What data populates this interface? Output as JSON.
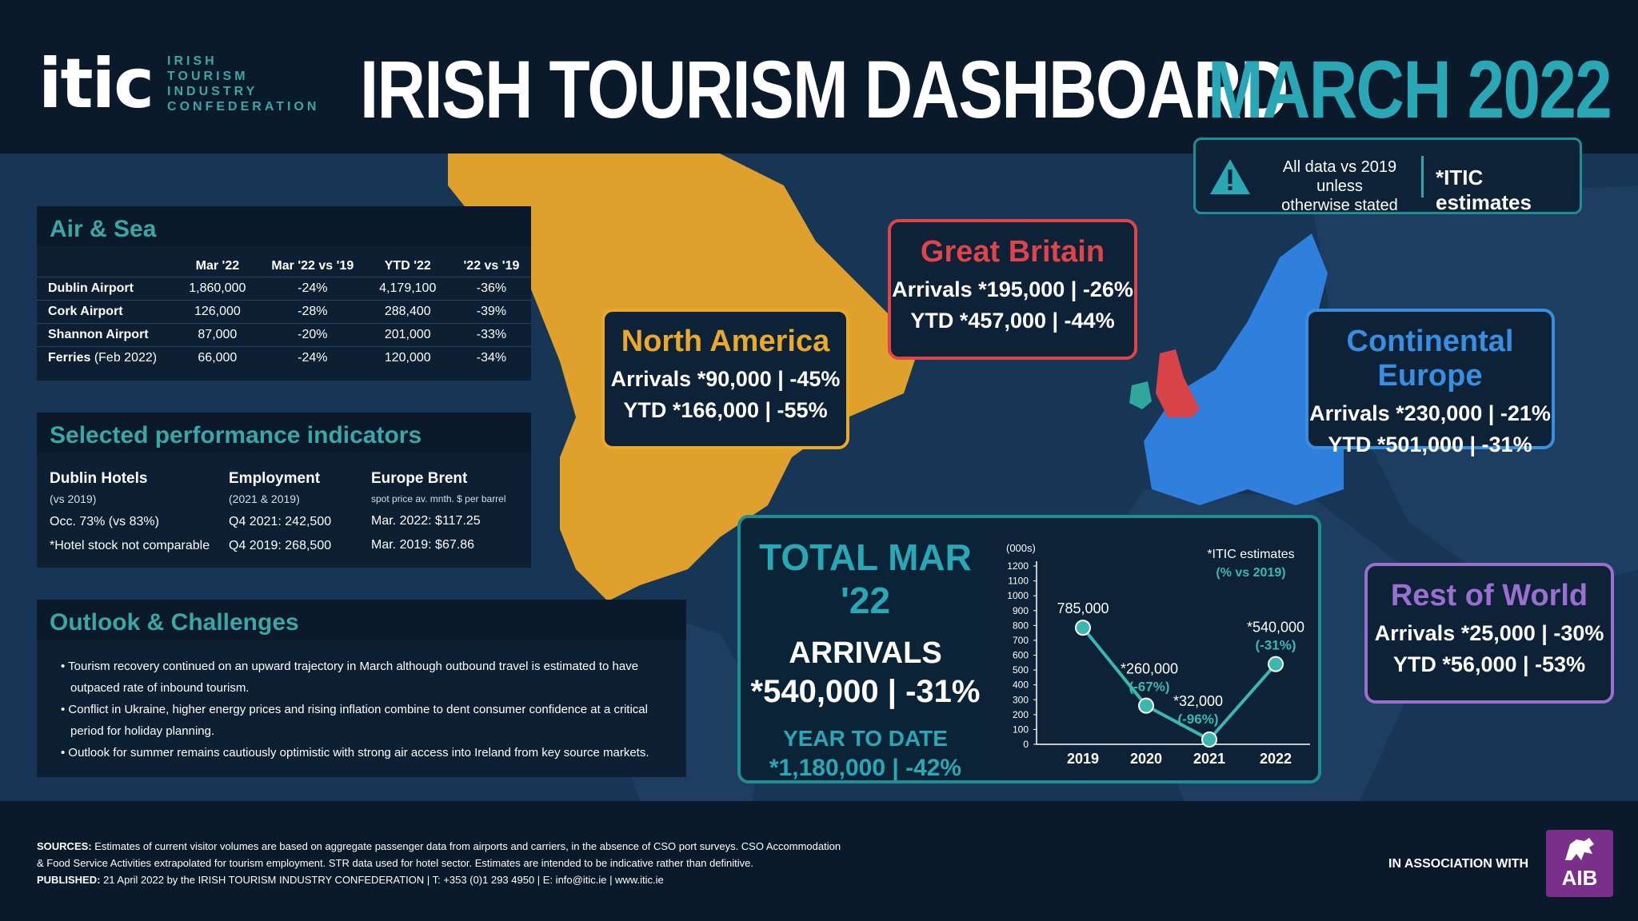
{
  "header": {
    "logo_mark": "itic",
    "logo_lines": [
      "IRISH",
      "TOURISM",
      "INDUSTRY",
      "CONFEDERATION"
    ],
    "title": "IRISH TOURISM DASHBOARD",
    "month": "MARCH 2022"
  },
  "notice": {
    "line1": "All data vs 2019 unless",
    "line2": "otherwise stated",
    "estimates": "*ITIC estimates",
    "icon": "warning-icon"
  },
  "air_sea": {
    "title": "Air & Sea",
    "columns": [
      "",
      "Mar '22",
      "Mar '22 vs '19",
      "YTD '22",
      "'22 vs '19"
    ],
    "rows": [
      {
        "name": "Dublin Airport",
        "note": "",
        "mar": "1,860,000",
        "mar_vs": "-24%",
        "ytd": "4,179,100",
        "ytd_vs": "-36%"
      },
      {
        "name": "Cork Airport",
        "note": "",
        "mar": "126,000",
        "mar_vs": "-28%",
        "ytd": "288,400",
        "ytd_vs": "-39%"
      },
      {
        "name": "Shannon Airport",
        "note": "",
        "mar": "87,000",
        "mar_vs": "-20%",
        "ytd": "201,000",
        "ytd_vs": "-33%"
      },
      {
        "name": "Ferries",
        "note": " (Feb 2022)",
        "mar": "66,000",
        "mar_vs": "-24%",
        "ytd": "120,000",
        "ytd_vs": "-34%"
      }
    ]
  },
  "indicators": {
    "title": "Selected performance indicators",
    "cols": [
      {
        "head": "Dublin Hotels",
        "sub": "(vs 2019)",
        "r1": "Occ. 73% (vs 83%)",
        "r2": "*Hotel stock not comparable"
      },
      {
        "head": "Employment",
        "sub": "(2021 & 2019)",
        "r1": "Q4 2021: 242,500",
        "r2": "Q4 2019: 268,500"
      },
      {
        "head": "Europe Brent",
        "sub": "spot price av. mnth. $ per barrel",
        "r1": "Mar. 2022: $117.25",
        "r2": "Mar. 2019: $67.86"
      }
    ]
  },
  "outlook": {
    "title": "Outlook & Challenges",
    "bullets": [
      [
        "Tourism recovery continued on an upward trajectory in March although outbound travel is estimated to have",
        "outpaced rate of inbound tourism."
      ],
      [
        "Conflict in Ukraine, higher energy prices and rising inflation combine to dent consumer confidence at a critical",
        "period for holiday planning."
      ],
      [
        "Outlook for summer remains cautiously optimistic with strong air access into Ireland from key source markets.",
        ""
      ]
    ]
  },
  "regions": {
    "north_america": {
      "title": "North America",
      "arrivals": "Arrivals *90,000 | -45%",
      "ytd": "YTD *166,000 | -55%",
      "color": "#e8a92c"
    },
    "great_britain": {
      "title": "Great Britain",
      "arrivals": "Arrivals *195,000 | -26%",
      "ytd": "YTD *457,000 | -44%",
      "color": "#e0444b"
    },
    "continental_europe": {
      "title": "Continental Europe",
      "arrivals": "Arrivals *230,000 | -21%",
      "ytd": "YTD *501,000 | -31%",
      "color": "#3a8ee0"
    },
    "rest_of_world": {
      "title": "Rest of World",
      "arrivals": "Arrivals *25,000 | -30%",
      "ytd": "YTD *56,000 | -53%",
      "color": "#9a6fd0"
    }
  },
  "total": {
    "title": "TOTAL MAR '22",
    "arrivals_label": "ARRIVALS",
    "arrivals_value": "*540,000 | -31%",
    "ytd_label": "YEAR TO DATE",
    "ytd_value": "*1,180,000 | -42%"
  },
  "chart_data": {
    "type": "line",
    "ylabel": "(000s)",
    "ylim": [
      0,
      1200
    ],
    "yticks": [
      0,
      100,
      200,
      300,
      400,
      500,
      600,
      700,
      800,
      900,
      1000,
      1100,
      1200
    ],
    "categories": [
      "2019",
      "2020",
      "2021",
      "2022"
    ],
    "values": [
      785,
      260,
      32,
      540
    ],
    "point_labels": [
      "785,000",
      "*260,000",
      "*32,000",
      "*540,000"
    ],
    "point_changes": [
      "",
      "(-67%)",
      "(-96%)",
      "(-31%)"
    ],
    "note_line1": "*ITIC estimates",
    "note_line2": "(% vs 2019)",
    "color": "#3ab8b0"
  },
  "footer": {
    "sources_label": "SOURCES:",
    "sources_line1": " Estimates of current visitor volumes are based on aggregate passenger data from airports and carriers, in the absence of CSO port surveys. CSO Accommodation",
    "sources_line2": "& Food Service Activities extrapolated for tourism employment. STR data used for hotel sector. Estimates are intended to be indicative rather than definitive.",
    "published_label": "PUBLISHED:",
    "published_text": " 21 April 2022 by the IRISH TOURISM INDUSTRY CONFEDERATION  |  T: +353 (0)1 293 4950  |  E: info@itic.ie  |  www.itic.ie",
    "association": "IN ASSOCIATION WITH",
    "sponsor": "AIB"
  }
}
